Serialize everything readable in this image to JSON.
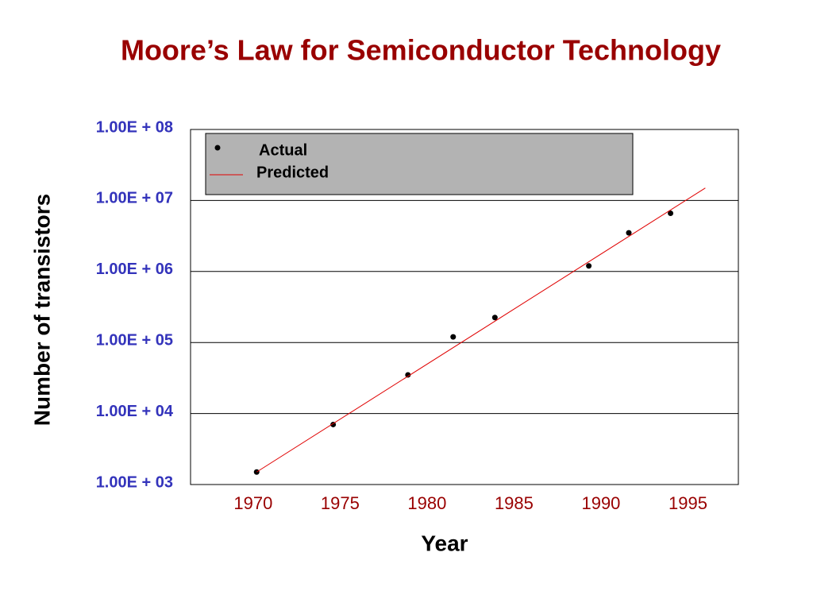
{
  "chart_data": {
    "type": "scatter",
    "title": "Moore’s Law  for Semiconductor Technology",
    "x_label": "Year",
    "y_label": "Number of  transistors",
    "ylog": true,
    "grid": true,
    "legend": "top-left",
    "xlim": [
      1966.4,
      1997.9
    ],
    "xticks": [
      1970,
      1975,
      1980,
      1985,
      1990,
      1995
    ],
    "ylim": [
      1000,
      100000000
    ],
    "yticks": [
      {
        "value": 100000000,
        "label": "1.00E + 08"
      },
      {
        "value": 10000000,
        "label": "1.00E + 07"
      },
      {
        "value": 1000000,
        "label": "1.00E + 06"
      },
      {
        "value": 100000,
        "label": "1.00E + 05"
      },
      {
        "value": 10000,
        "label": "1.00E + 04"
      },
      {
        "value": 1000,
        "label": "1.00E + 03"
      }
    ],
    "series": [
      {
        "name": "Actual",
        "style": "marker",
        "color": "#000000",
        "x": [
          1970.2,
          1974.6,
          1978.9,
          1981.5,
          1983.9,
          1989.3,
          1991.6,
          1994.0
        ],
        "values": [
          1500,
          7000,
          35000,
          120000,
          225000,
          1200000,
          3500000,
          6600000
        ]
      },
      {
        "name": "Predicted",
        "style": "line",
        "color": "#e00000",
        "x": [
          1970.2,
          1996
        ],
        "values": [
          1500,
          15000000
        ]
      }
    ]
  }
}
